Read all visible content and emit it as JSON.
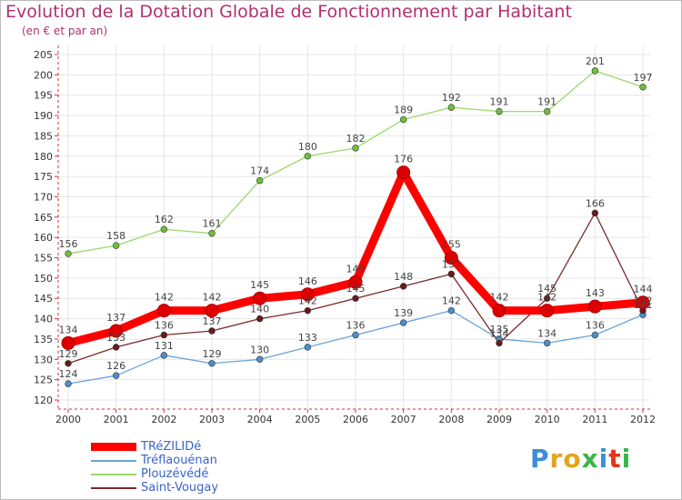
{
  "header": {
    "title": "Evolution de la Dotation Globale de Fonctionnement par Habitant",
    "subtitle": "(en € et par an)"
  },
  "logo": {
    "text": "Proxiti",
    "colors": [
      "#3a8fd8",
      "#e6a31c",
      "#e6a31c",
      "#3ab54a",
      "#3a8fd8",
      "#e6331c",
      "#3ab54a"
    ]
  },
  "chart_data": {
    "type": "line",
    "title": "Evolution de la Dotation Globale de Fonctionnement par Habitant",
    "subtitle": "(en € et par an)",
    "xlabel": "",
    "ylabel": "",
    "x": [
      "2000",
      "2001",
      "2002",
      "2003",
      "2004",
      "2005",
      "2006",
      "2007",
      "2008",
      "2009",
      "2010",
      "2011",
      "2012"
    ],
    "ylim": [
      120,
      205
    ],
    "yticks": [
      120,
      125,
      130,
      135,
      140,
      145,
      150,
      155,
      160,
      165,
      170,
      175,
      180,
      185,
      190,
      195,
      200,
      205
    ],
    "grid": true,
    "legend_position": "bottom-left",
    "series": [
      {
        "name": "TRéZILIDé",
        "color": "#ff0000",
        "marker": "#dd0000",
        "emphasis": true,
        "values": [
          134,
          137,
          142,
          142,
          145,
          146,
          149,
          176,
          155,
          142,
          142,
          143,
          144
        ]
      },
      {
        "name": "Tréflaouénan",
        "color": "#6aa3d8",
        "marker": "#4b8fd0",
        "emphasis": false,
        "values": [
          124,
          126,
          131,
          129,
          130,
          133,
          136,
          139,
          142,
          135,
          134,
          136,
          141
        ]
      },
      {
        "name": "Plouzévédé",
        "color": "#9bd86a",
        "marker": "#6cc23a",
        "emphasis": false,
        "values": [
          156,
          158,
          162,
          161,
          174,
          180,
          182,
          189,
          192,
          191,
          191,
          201,
          197
        ]
      },
      {
        "name": "Saint-Vougay",
        "color": "#7a2a2a",
        "marker": "#6a1a1a",
        "emphasis": false,
        "values": [
          129,
          133,
          136,
          137,
          140,
          142,
          145,
          148,
          151,
          134,
          145,
          166,
          142
        ]
      }
    ]
  }
}
